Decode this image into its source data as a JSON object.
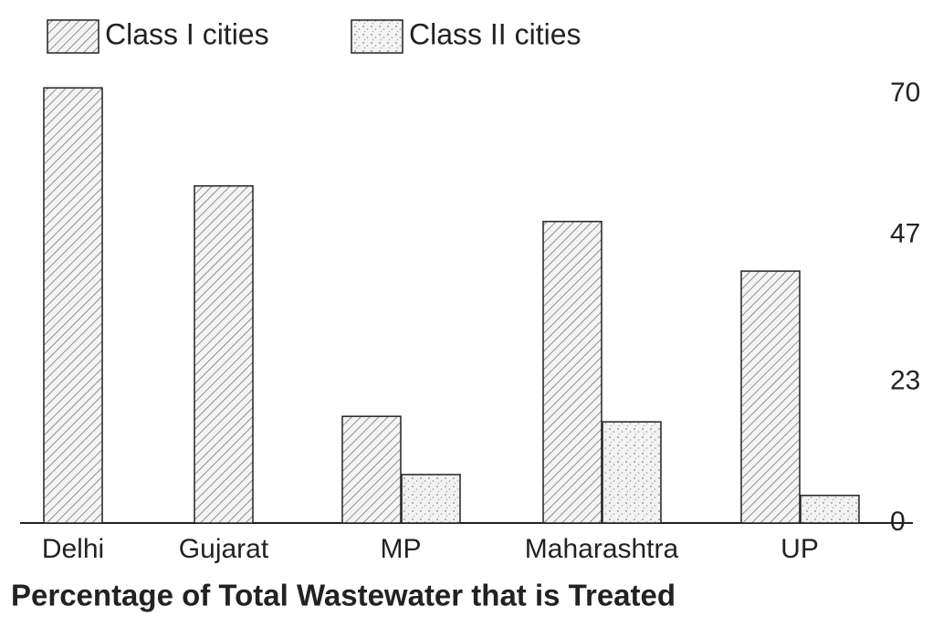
{
  "chart_data": {
    "type": "bar",
    "title": "Percentage of Total Wastewater that is Treated",
    "categories": [
      "Delhi",
      "Gujarat",
      "MP",
      "Maharashtra",
      "UP"
    ],
    "series": [
      {
        "name": "Class I cities",
        "color": "hatch",
        "values": [
          71,
          55,
          17.4,
          49.2,
          41.1
        ]
      },
      {
        "name": "Class II cities",
        "color": "stipple",
        "values": [
          null,
          null,
          7.9,
          16.5,
          4.5
        ]
      }
    ],
    "ylim": [
      0,
      70
    ],
    "yticks": [
      0,
      23,
      47,
      70
    ],
    "grid": false,
    "axis_side": "right",
    "legend": "top"
  }
}
